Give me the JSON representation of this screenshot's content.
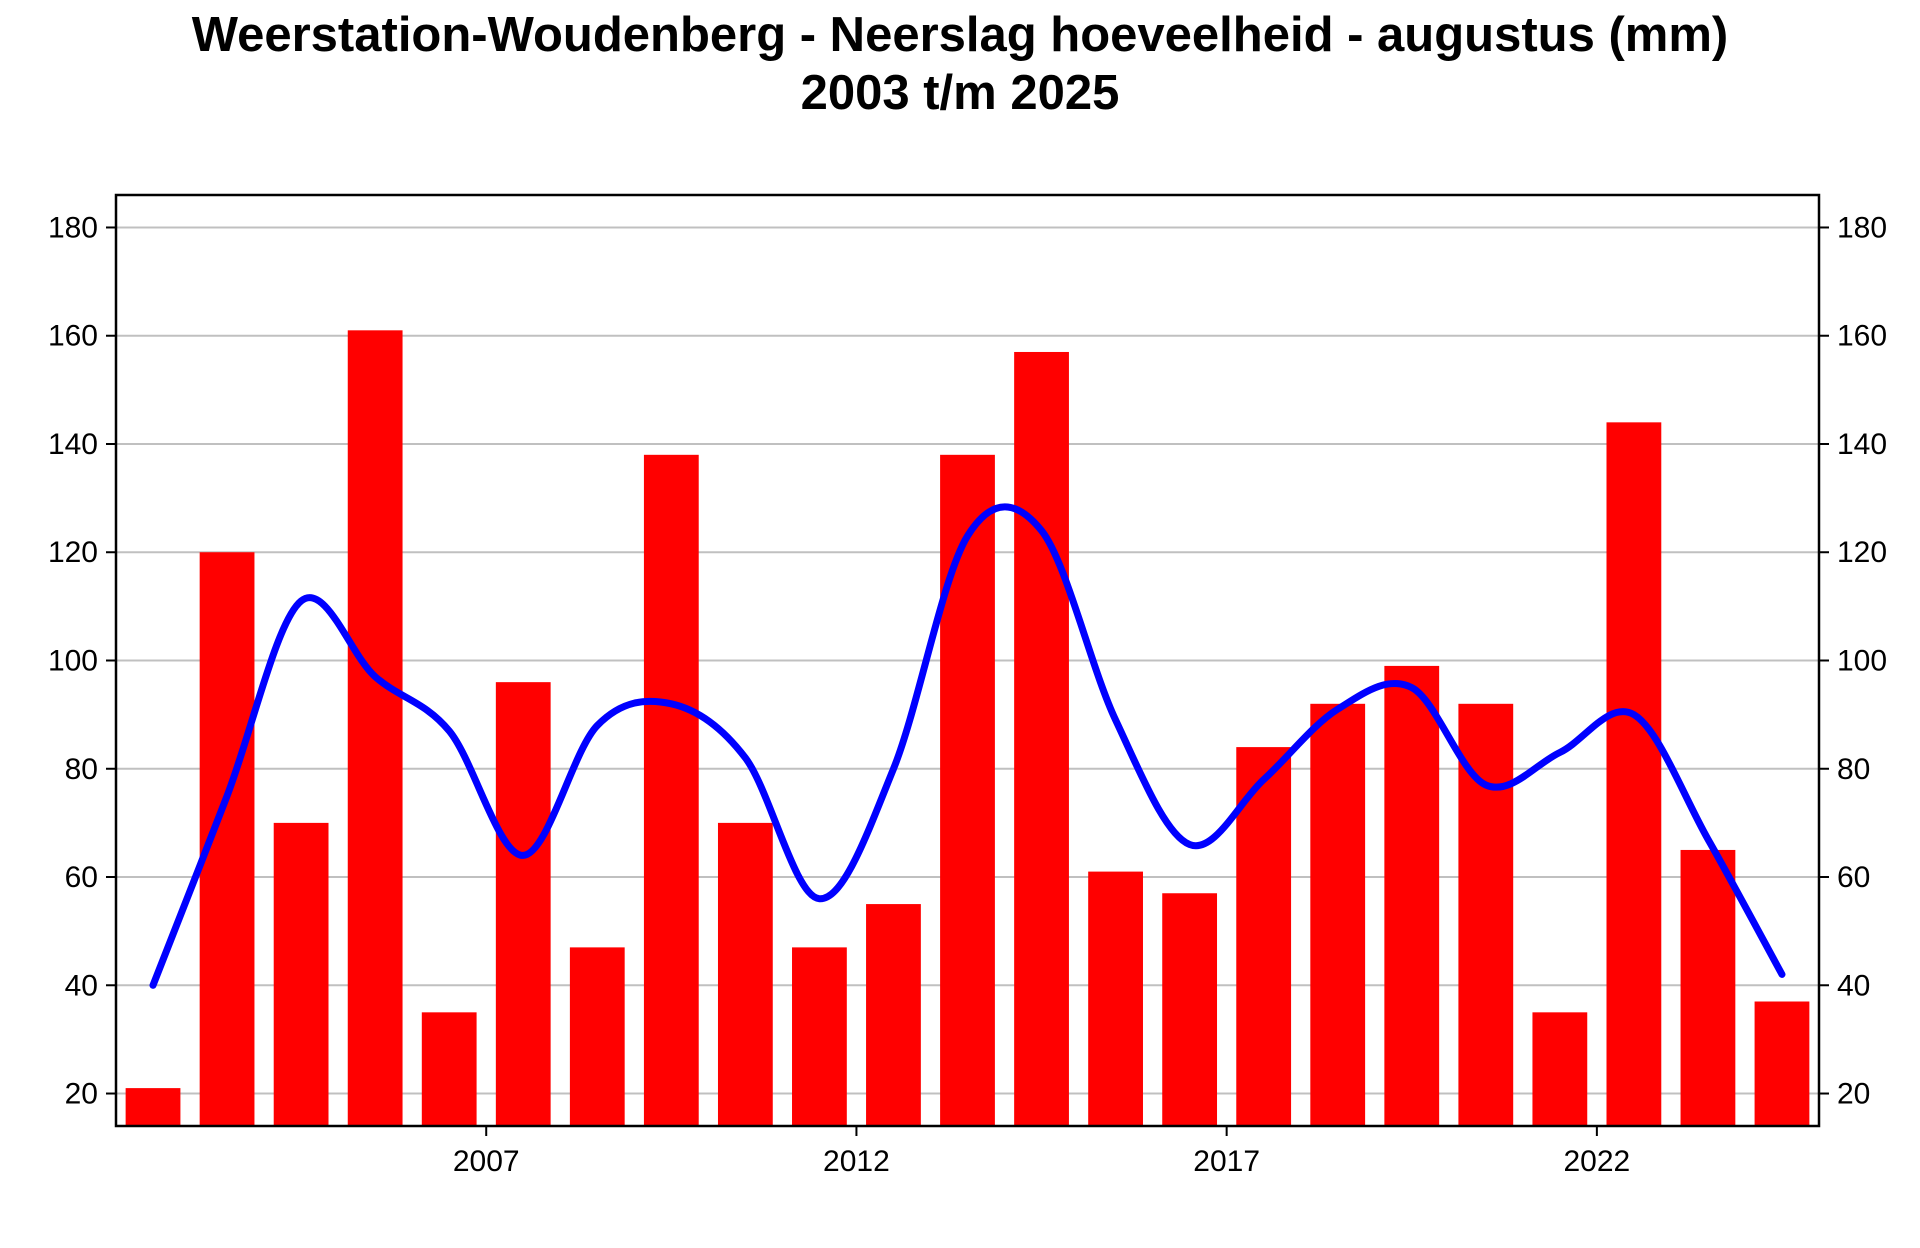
{
  "chart_data": {
    "type": "bar",
    "title": "Weerstation-Woudenberg - Neerslag hoeveelheid - augustus  (mm)",
    "subtitle": "2003 t/m 2025",
    "xlabel": "",
    "ylabel": "",
    "x": [
      2003,
      2004,
      2005,
      2006,
      2007,
      2008,
      2009,
      2010,
      2011,
      2012,
      2013,
      2014,
      2015,
      2016,
      2017,
      2018,
      2019,
      2020,
      2021,
      2022,
      2023,
      2024,
      2025
    ],
    "x_tick_labels": [
      "2007",
      "2012",
      "2017",
      "2022"
    ],
    "x_tick_values": [
      2007.5,
      2012.5,
      2017.5,
      2022.5
    ],
    "ylim": [
      14,
      186
    ],
    "y_ticks": [
      20,
      40,
      60,
      80,
      100,
      120,
      140,
      160,
      180
    ],
    "grid": true,
    "series": [
      {
        "name": "Neerslag",
        "type": "bar",
        "color": "#ff0000",
        "values": [
          21,
          120,
          70,
          161,
          35,
          96,
          47,
          138,
          70,
          47,
          55,
          138,
          157,
          61,
          57,
          84,
          92,
          99,
          92,
          35,
          144,
          65,
          37
        ]
      },
      {
        "name": "Trend",
        "type": "line",
        "color": "#0000ff",
        "values": [
          40,
          75,
          111,
          97,
          87,
          64,
          88,
          92,
          82,
          56,
          80,
          123,
          124,
          89,
          66,
          78,
          91,
          95,
          77,
          83,
          90,
          67,
          42
        ]
      }
    ]
  }
}
